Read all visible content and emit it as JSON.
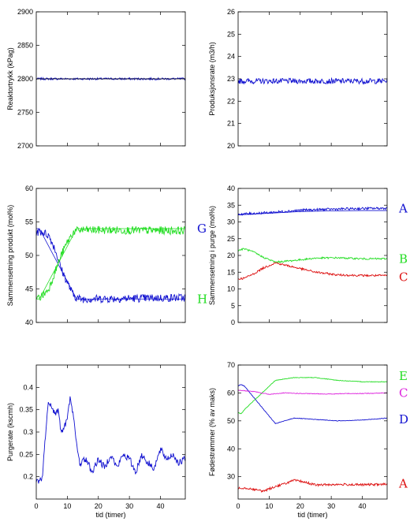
{
  "chart_data": [
    {
      "type": "line",
      "ylabel": "Reaktortrykk (kPag)",
      "xlabel": "",
      "xlim": [
        0,
        48
      ],
      "ylim": [
        2700,
        2900
      ],
      "xticks": [],
      "yticks": [
        2700,
        2750,
        2800,
        2850,
        2900
      ],
      "series": [
        {
          "color": "#1010d0",
          "noise": 1.5,
          "x": [
            0,
            48
          ],
          "y": [
            2800,
            2800
          ]
        },
        {
          "color": "#000000",
          "noise": 0,
          "x": [
            0,
            48
          ],
          "y": [
            2800,
            2800
          ]
        }
      ],
      "side_labels": []
    },
    {
      "type": "line",
      "ylabel": "Produksjonsrate (m3/h)",
      "xlabel": "",
      "xlim": [
        0,
        48
      ],
      "ylim": [
        20,
        26
      ],
      "xticks": [],
      "yticks": [
        20,
        21,
        22,
        23,
        24,
        25,
        26
      ],
      "series": [
        {
          "color": "#1010d0",
          "noise": 0.12,
          "x": [
            0,
            48
          ],
          "y": [
            22.9,
            22.9
          ]
        }
      ],
      "side_labels": []
    },
    {
      "type": "line",
      "ylabel": "Sammensetning produkt (mol%)",
      "xlabel": "",
      "xlim": [
        0,
        48
      ],
      "ylim": [
        40,
        60
      ],
      "xticks": [],
      "yticks": [
        40,
        45,
        50,
        55,
        60
      ],
      "series": [
        {
          "color": "#1010d0",
          "noise": 0.6,
          "x": [
            0,
            2,
            4,
            6,
            8,
            10,
            12,
            14,
            48
          ],
          "y": [
            53.5,
            53.5,
            53,
            51,
            48,
            46,
            44,
            43.5,
            43.7
          ]
        },
        {
          "color": "#1010d0",
          "noise": 0,
          "x": [
            0,
            1,
            13,
            48
          ],
          "y": [
            54,
            54,
            43.5,
            43.5
          ]
        },
        {
          "color": "#22dd22",
          "noise": 0.6,
          "x": [
            0,
            2,
            4,
            6,
            8,
            10,
            12,
            14,
            48
          ],
          "y": [
            43.5,
            44,
            45,
            47.5,
            50,
            52,
            53.5,
            53.8,
            53.7
          ]
        },
        {
          "color": "#22dd22",
          "noise": 0,
          "x": [
            0,
            1,
            13,
            48
          ],
          "y": [
            43.5,
            43.5,
            54,
            54
          ]
        }
      ],
      "side_labels": [
        {
          "text": "G",
          "color": "#1010d0",
          "value": 54
        },
        {
          "text": "H",
          "color": "#22dd22",
          "value": 43.5
        }
      ]
    },
    {
      "type": "line",
      "ylabel": "Sammensetning i purge (mol%)",
      "xlabel": "",
      "xlim": [
        0,
        48
      ],
      "ylim": [
        0,
        40
      ],
      "xticks": [],
      "yticks": [
        0,
        5,
        10,
        15,
        20,
        25,
        30,
        35,
        40
      ],
      "series": [
        {
          "color": "#1010d0",
          "noise": 0.35,
          "x": [
            0,
            10,
            20,
            30,
            40,
            48
          ],
          "y": [
            32.3,
            32.8,
            33.5,
            33.8,
            34,
            34.1
          ]
        },
        {
          "color": "#1010d0",
          "noise": 0,
          "x": [
            0,
            10,
            20,
            30,
            40,
            48
          ],
          "y": [
            32.1,
            32.6,
            33.1,
            33.3,
            33.4,
            33.4
          ]
        },
        {
          "color": "#22dd22",
          "noise": 0.25,
          "x": [
            0,
            2,
            5,
            8,
            12,
            18,
            25,
            32,
            40,
            48
          ],
          "y": [
            21.5,
            22,
            21,
            19.5,
            18,
            18.5,
            19.2,
            19.3,
            19,
            19
          ]
        },
        {
          "color": "#dd1111",
          "noise": 0.3,
          "x": [
            0,
            2,
            5,
            8,
            12,
            18,
            25,
            32,
            40,
            48
          ],
          "y": [
            13,
            13.2,
            14.5,
            16.2,
            17.8,
            16.5,
            15,
            14.2,
            14,
            14
          ]
        }
      ],
      "side_labels": [
        {
          "text": "A",
          "color": "#1010d0",
          "value": 34
        },
        {
          "text": "B",
          "color": "#22dd22",
          "value": 19
        },
        {
          "text": "C",
          "color": "#dd1111",
          "value": 13.5
        }
      ]
    },
    {
      "type": "line",
      "ylabel": "Purgerate (kscmh)",
      "xlabel": "tid (timer)",
      "xlim": [
        0,
        48
      ],
      "ylim": [
        0.15,
        0.45
      ],
      "xticks": [
        0,
        10,
        20,
        30,
        40
      ],
      "yticks": [
        0.2,
        0.25,
        0.3,
        0.35,
        0.4
      ],
      "series": [
        {
          "color": "#1010d0",
          "noise": 0.008,
          "x": [
            0,
            1,
            2,
            3,
            4,
            5,
            6,
            7,
            8,
            9,
            10,
            11,
            11.5,
            12,
            13,
            14,
            16,
            18,
            20,
            22,
            24,
            26,
            28,
            30,
            32,
            34,
            36,
            38,
            40,
            42,
            44,
            46,
            48
          ],
          "y": [
            0.19,
            0.19,
            0.2,
            0.3,
            0.37,
            0.36,
            0.34,
            0.35,
            0.3,
            0.31,
            0.33,
            0.38,
            0.36,
            0.33,
            0.27,
            0.23,
            0.24,
            0.21,
            0.24,
            0.22,
            0.25,
            0.22,
            0.25,
            0.24,
            0.21,
            0.25,
            0.23,
            0.22,
            0.26,
            0.24,
            0.25,
            0.23,
            0.24
          ]
        }
      ],
      "side_labels": []
    },
    {
      "type": "line",
      "ylabel": "Fødestrømmer (% av maks)",
      "xlabel": "tid (timer)",
      "xlim": [
        0,
        48
      ],
      "ylim": [
        22,
        70
      ],
      "xticks": [
        0,
        10,
        20,
        30,
        40
      ],
      "yticks": [
        30,
        40,
        50,
        60,
        70
      ],
      "series": [
        {
          "color": "#1010d0",
          "noise": 0.1,
          "x": [
            0,
            1,
            2,
            12,
            18,
            25,
            32,
            40,
            48
          ],
          "y": [
            62.5,
            63,
            62.5,
            49,
            51,
            50.5,
            50,
            50.3,
            51
          ]
        },
        {
          "color": "#22dd22",
          "noise": 0.1,
          "x": [
            0,
            1,
            2,
            12,
            18,
            25,
            32,
            40,
            48
          ],
          "y": [
            53,
            52.5,
            54,
            64.5,
            65.5,
            65.5,
            64.5,
            64,
            64
          ]
        },
        {
          "color": "#dd22dd",
          "noise": 0.12,
          "x": [
            0,
            5,
            10,
            15,
            20,
            25,
            30,
            35,
            40,
            48
          ],
          "y": [
            61,
            60.5,
            59.5,
            60,
            59.8,
            59.7,
            59.6,
            59.8,
            59.8,
            60
          ]
        },
        {
          "color": "#dd1111",
          "noise": 0.4,
          "x": [
            0,
            2,
            5,
            8,
            12,
            15,
            18,
            21,
            25,
            30,
            35,
            40,
            44,
            48
          ],
          "y": [
            26,
            26,
            25.5,
            24.8,
            26.5,
            27.5,
            28.7,
            28.2,
            27,
            27.2,
            27.2,
            27.1,
            27.2,
            27.3
          ]
        }
      ],
      "side_labels": [
        {
          "text": "E",
          "color": "#22dd22",
          "value": 66
        },
        {
          "text": "C",
          "color": "#dd22dd",
          "value": 60
        },
        {
          "text": "D",
          "color": "#1010d0",
          "value": 50.5
        },
        {
          "text": "A",
          "color": "#dd1111",
          "value": 27.5
        }
      ]
    }
  ]
}
